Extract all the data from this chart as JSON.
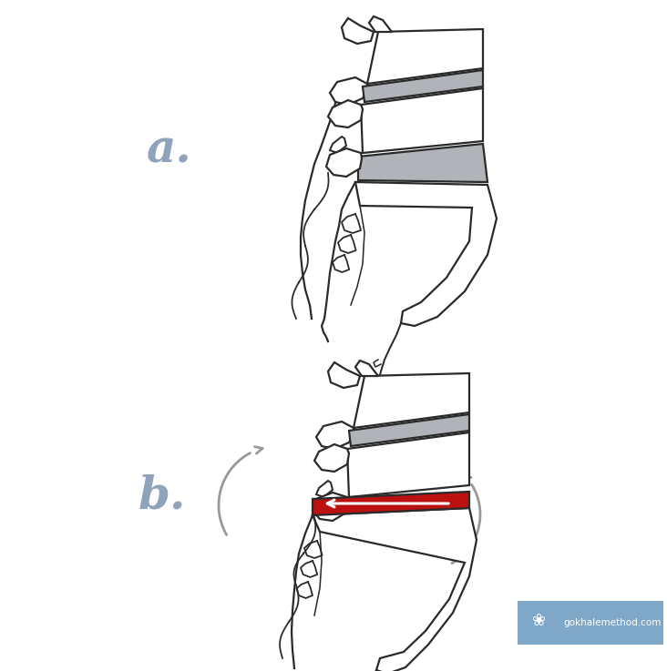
{
  "bg_color": "#ffffff",
  "outline_color": "#2a2a2a",
  "disc_color_light": "#b0b4b8",
  "disc_color_dark": "#888c92",
  "red_color": "#bb1111",
  "arrow_gray": "#999999",
  "label_color": "#8fa3bc",
  "watermark_bg": "#7fa8c8",
  "watermark_text_color": "#ffffff",
  "watermark_text": "gokhalemethod.com",
  "label_a": "a.",
  "label_b": "b.",
  "lw_main": 1.6,
  "fig_width": 7.32,
  "fig_height": 7.37,
  "dpi": 100
}
